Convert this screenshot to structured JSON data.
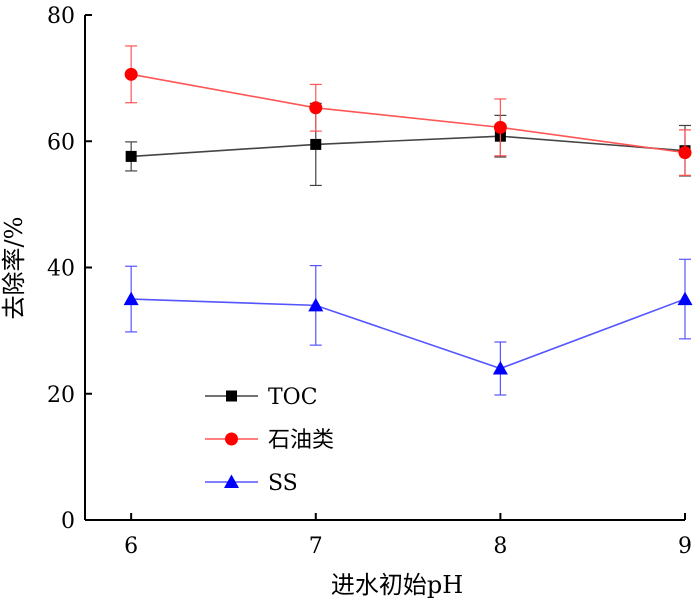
{
  "chart_data": {
    "type": "line",
    "title": "",
    "xlabel": "进水初始pH",
    "ylabel": "去除率/%",
    "x": [
      6,
      7,
      8,
      9
    ],
    "xlim": [
      5.75,
      9
    ],
    "ylim": [
      0,
      80
    ],
    "xticks": [
      6,
      7,
      8,
      9
    ],
    "yticks": [
      0,
      20,
      40,
      60,
      80
    ],
    "grid": false,
    "legend_position": "lower-left",
    "series": [
      {
        "name": "TOC",
        "values": [
          57.6,
          59.5,
          60.8,
          58.5
        ],
        "errors": [
          2.3,
          6.5,
          3.3,
          4.0
        ],
        "color": "#000000",
        "line_color": "#444444",
        "marker": "square"
      },
      {
        "name": "石油类",
        "values": [
          70.6,
          65.3,
          62.2,
          58.2
        ],
        "errors": [
          4.5,
          3.7,
          4.5,
          3.6
        ],
        "color": "#ff0000",
        "line_color": "#ff5555",
        "marker": "circle"
      },
      {
        "name": "SS",
        "values": [
          35.0,
          34.0,
          24.0,
          35.0
        ],
        "errors": [
          5.2,
          6.3,
          4.2,
          6.3
        ],
        "color": "#0000ff",
        "line_color": "#5555ff",
        "marker": "triangle"
      }
    ]
  }
}
